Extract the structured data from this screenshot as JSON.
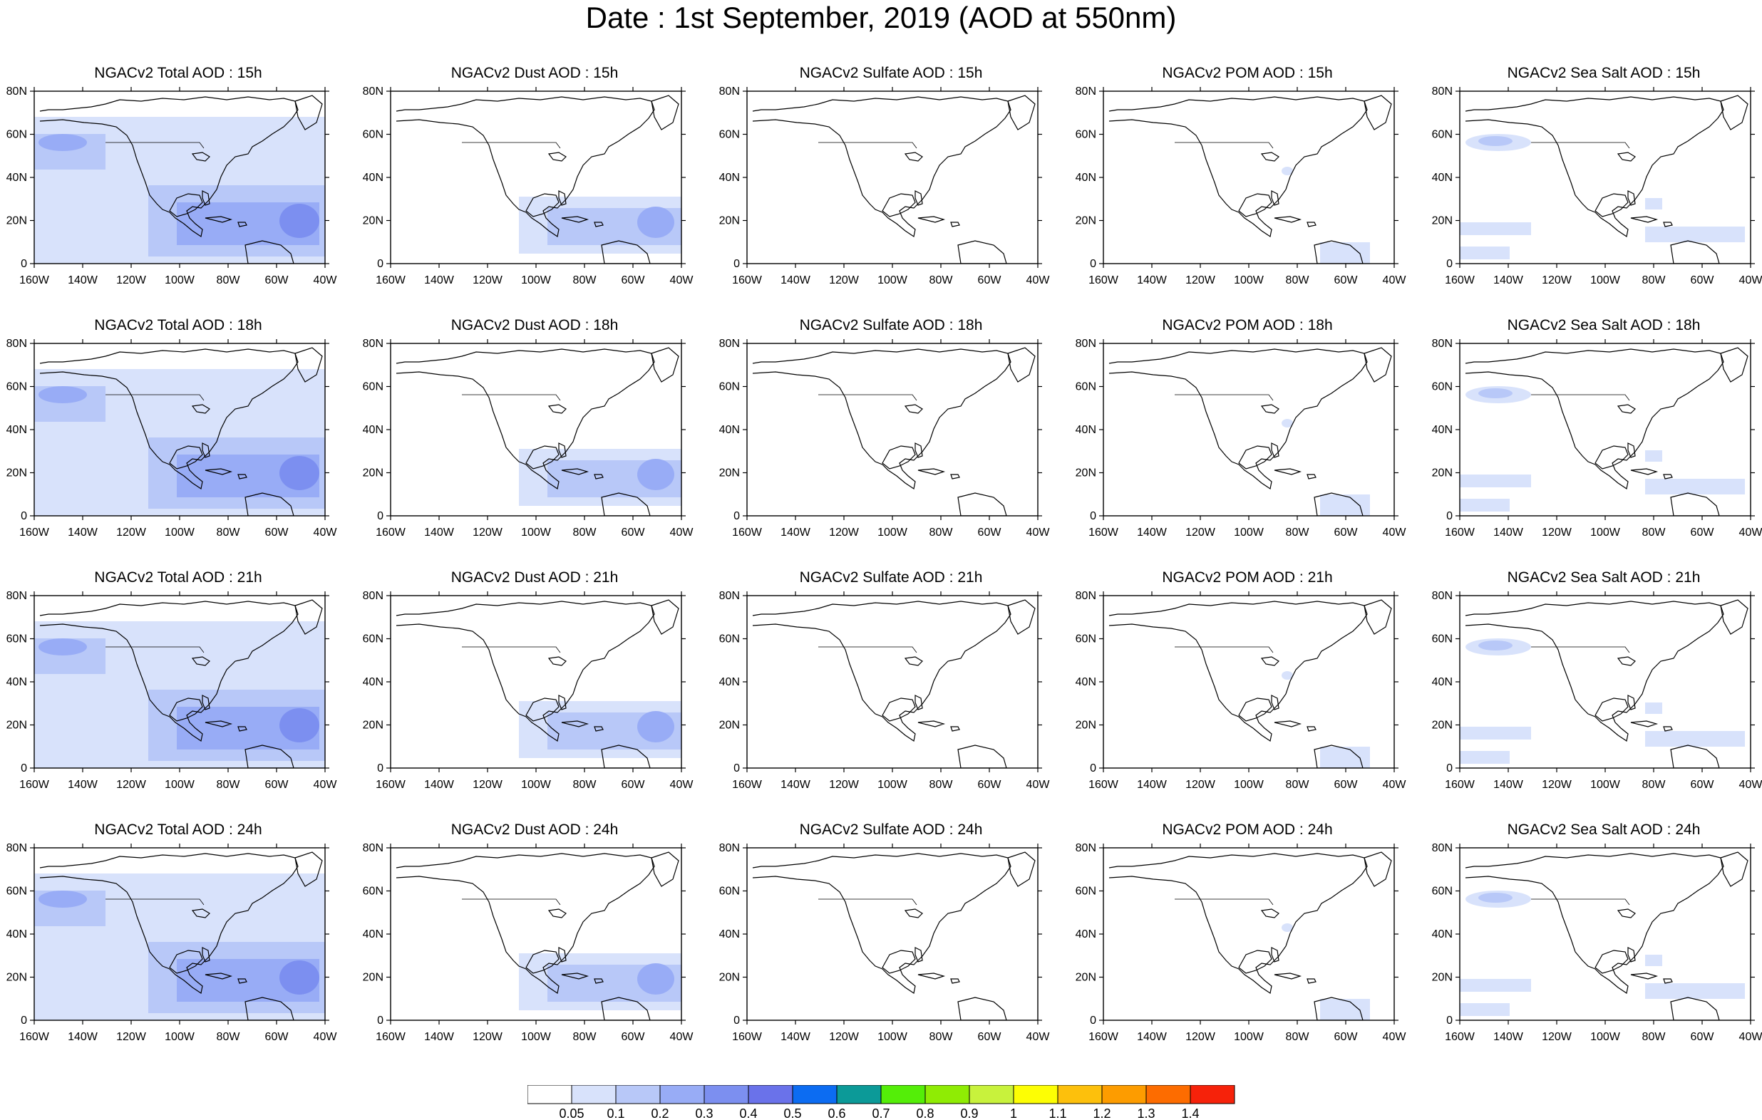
{
  "title": "Date : 1st September, 2019 (AOD at 550nm)",
  "lat_labels": [
    "0",
    "20N",
    "40N",
    "60N",
    "80N"
  ],
  "lon_labels": [
    "160W",
    "140W",
    "120W",
    "100W",
    "80W",
    "60W",
    "40W"
  ],
  "colorbar": {
    "labels": [
      "0.05",
      "0.1",
      "0.2",
      "0.3",
      "0.4",
      "0.5",
      "0.6",
      "0.7",
      "0.8",
      "0.9",
      "1",
      "1.1",
      "1.2",
      "1.3",
      "1.4"
    ],
    "colors": [
      "#ffffff",
      "#d8e2fb",
      "#b8c8f8",
      "#98acf6",
      "#7c8ff0",
      "#6a72ea",
      "#0c6cf2",
      "#0c9a98",
      "#54ee08",
      "#8fec04",
      "#c8f23c",
      "#fdfe04",
      "#fdc00c",
      "#fd9c00",
      "#fd6c00",
      "#f6220a"
    ]
  },
  "panels": [
    {
      "title": "NGACv2 Total AOD : 15h",
      "species": "total"
    },
    {
      "title": "NGACv2 Dust AOD : 15h",
      "species": "dust"
    },
    {
      "title": "NGACv2 Sulfate AOD : 15h",
      "species": "sulfate"
    },
    {
      "title": "NGACv2 POM AOD : 15h",
      "species": "pom"
    },
    {
      "title": "NGACv2 Sea Salt AOD : 15h",
      "species": "seasalt"
    },
    {
      "title": "NGACv2 Total AOD : 18h",
      "species": "total"
    },
    {
      "title": "NGACv2 Dust AOD : 18h",
      "species": "dust"
    },
    {
      "title": "NGACv2 Sulfate AOD : 18h",
      "species": "sulfate"
    },
    {
      "title": "NGACv2 POM AOD : 18h",
      "species": "pom"
    },
    {
      "title": "NGACv2 Sea Salt AOD : 18h",
      "species": "seasalt"
    },
    {
      "title": "NGACv2 Total AOD : 21h",
      "species": "total"
    },
    {
      "title": "NGACv2 Dust AOD : 21h",
      "species": "dust"
    },
    {
      "title": "NGACv2 Sulfate AOD : 21h",
      "species": "sulfate"
    },
    {
      "title": "NGACv2 POM AOD : 21h",
      "species": "pom"
    },
    {
      "title": "NGACv2 Sea Salt AOD : 21h",
      "species": "seasalt"
    },
    {
      "title": "NGACv2 Total AOD : 24h",
      "species": "total"
    },
    {
      "title": "NGACv2 Dust AOD : 24h",
      "species": "dust"
    },
    {
      "title": "NGACv2 Sulfate AOD : 24h",
      "species": "sulfate"
    },
    {
      "title": "NGACv2 POM AOD : 24h",
      "species": "pom"
    },
    {
      "title": "NGACv2 Sea Salt  AOD : 24h",
      "species": "seasalt"
    }
  ]
}
